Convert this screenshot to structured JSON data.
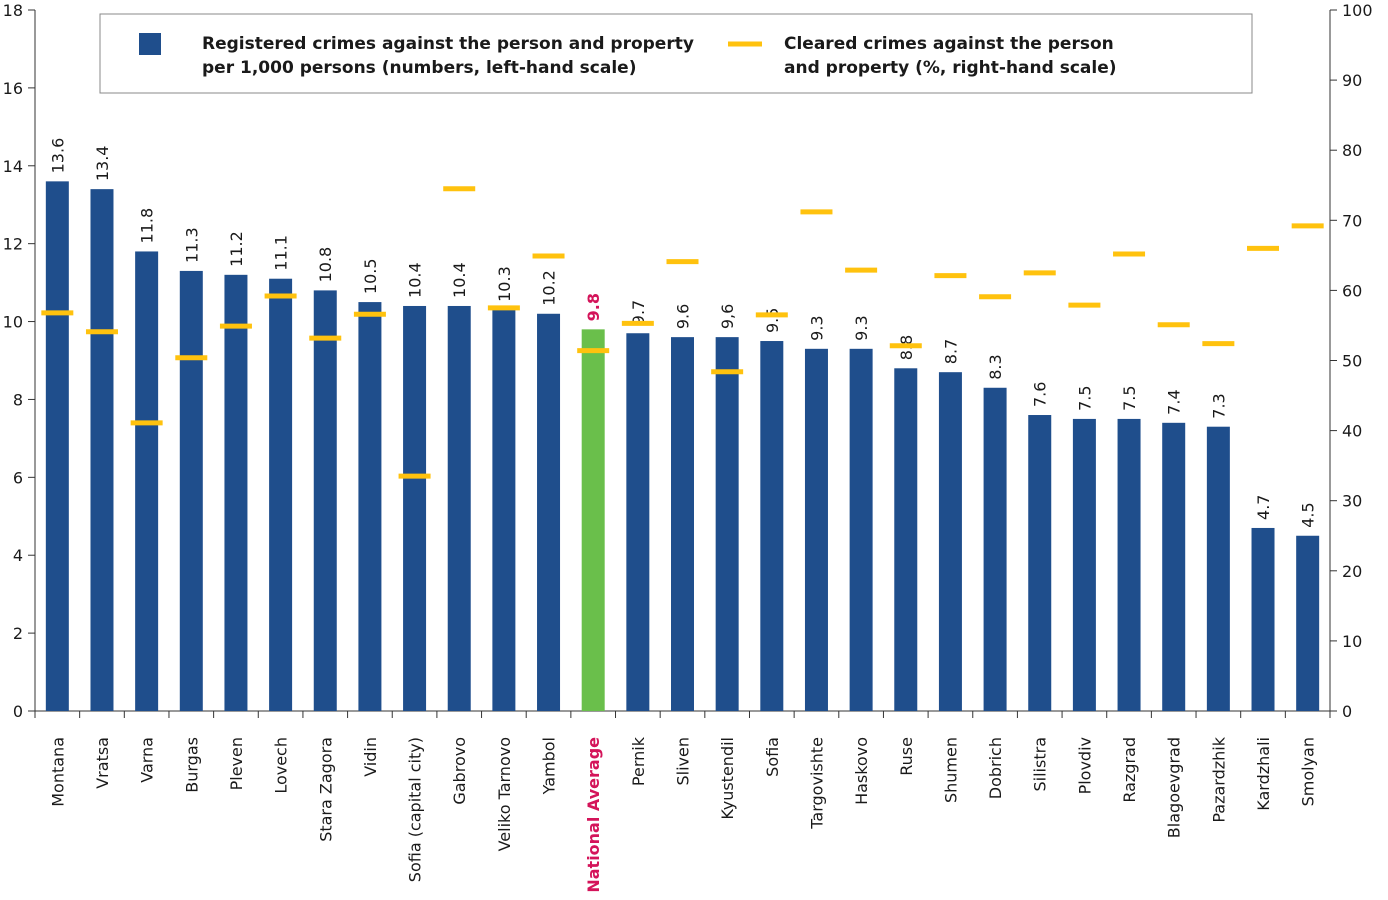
{
  "chart_data": {
    "type": "bar",
    "categories": [
      "Montana",
      "Vratsa",
      "Varna",
      "Burgas",
      "Pleven",
      "Lovech",
      "Stara Zagora",
      "Vidin",
      "Sofia (capital city)",
      "Gabrovo",
      "Veliko Tarnovo",
      "Yambol",
      "National Average",
      "Pernik",
      "Sliven",
      "Kyustendil",
      "Sofia",
      "Targovishte",
      "Haskovo",
      "Ruse",
      "Shumen",
      "Dobrich",
      "Silistra",
      "Plovdiv",
      "Razgrad",
      "Blagoevgrad",
      "Pazardzhik",
      "Kardzhali",
      "Smolyan"
    ],
    "series": [
      {
        "name": "Registered crimes against the person and property\nper 1,000 persons (numbers, left-hand scale)",
        "color": "#1f4e8c",
        "colors": [
          "#1f4e8c",
          "#1f4e8c",
          "#1f4e8c",
          "#1f4e8c",
          "#1f4e8c",
          "#1f4e8c",
          "#1f4e8c",
          "#1f4e8c",
          "#1f4e8c",
          "#1f4e8c",
          "#1f4e8c",
          "#1f4e8c",
          "#6abf4b",
          "#1f4e8c",
          "#1f4e8c",
          "#1f4e8c",
          "#1f4e8c",
          "#1f4e8c",
          "#1f4e8c",
          "#1f4e8c",
          "#1f4e8c",
          "#1f4e8c",
          "#1f4e8c",
          "#1f4e8c",
          "#1f4e8c",
          "#1f4e8c",
          "#1f4e8c",
          "#1f4e8c",
          "#1f4e8c"
        ],
        "values": [
          13.6,
          13.4,
          11.8,
          11.3,
          11.2,
          11.1,
          10.8,
          10.5,
          10.4,
          10.4,
          10.3,
          10.2,
          9.8,
          9.7,
          9.6,
          9.6,
          9.5,
          9.3,
          9.3,
          8.8,
          8.7,
          8.3,
          7.6,
          7.5,
          7.5,
          7.4,
          7.3,
          4.7,
          4.5
        ],
        "value_labels": [
          "13.6",
          "13.4",
          "11.8",
          "11.3",
          "11.2",
          "11.1",
          "10.8",
          "10.5",
          "10.4",
          "10.4",
          "10.3",
          "10.2",
          "9.8",
          "9.7",
          "9.6",
          "9,6",
          "9.5",
          "9.3",
          "9.3",
          "8.8",
          "8.7",
          "8.3",
          "7.6",
          "7.5",
          "7.5",
          "7.4",
          "7.3",
          "4.7",
          "4.5"
        ]
      },
      {
        "name": "Cleared crimes against the person\nand property (%, right-hand scale)",
        "color": "#ffc20e",
        "axis": "y2",
        "values": [
          56.8,
          54.1,
          41.1,
          50.4,
          54.9,
          59.2,
          53.2,
          56.6,
          33.5,
          74.5,
          57.5,
          64.9,
          51.4,
          55.3,
          64.1,
          48.4,
          56.5,
          71.2,
          62.9,
          52.1,
          62.1,
          59.1,
          62.5,
          57.9,
          65.2,
          55.1,
          52.4,
          66.0,
          69.2
        ]
      }
    ],
    "highlight_text_color": "#d4145a",
    "ylim": [
      0,
      18
    ],
    "yticks": [
      0,
      2,
      4,
      6,
      8,
      10,
      12,
      14,
      16,
      18
    ],
    "y2lim": [
      0,
      100
    ],
    "y2ticks": [
      0,
      10,
      20,
      30,
      40,
      50,
      60,
      70,
      80,
      90,
      100
    ]
  }
}
